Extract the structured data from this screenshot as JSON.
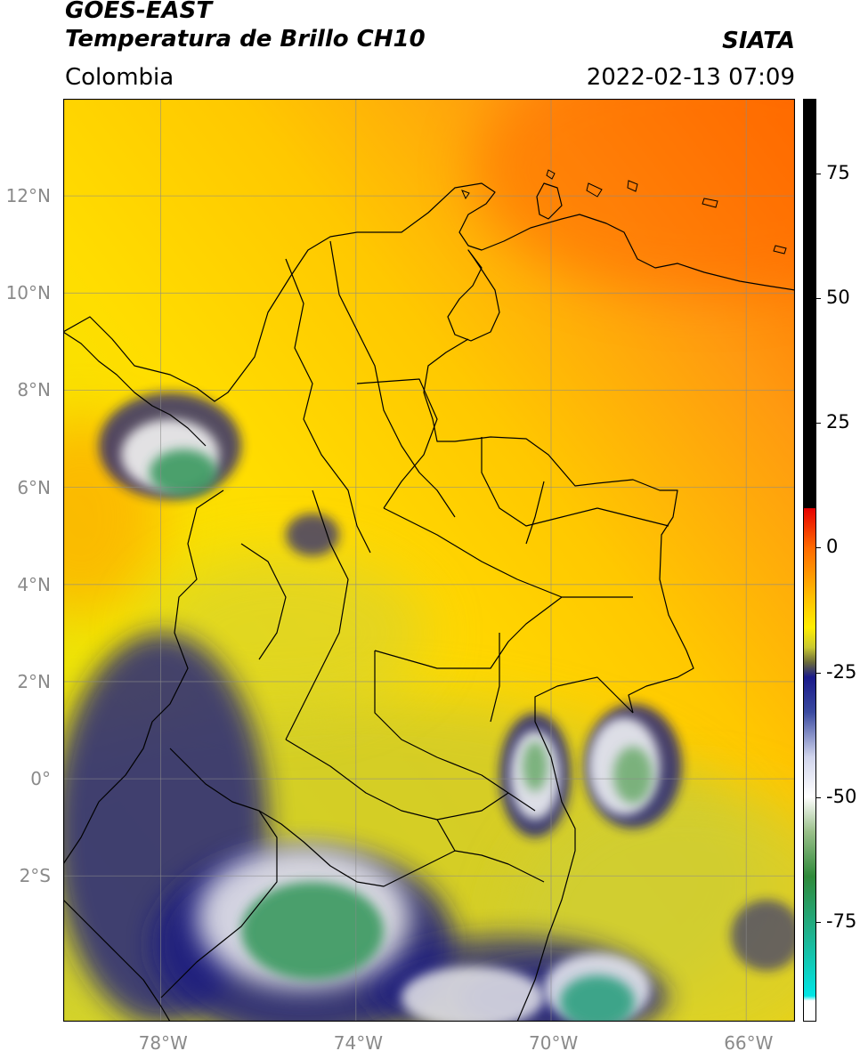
{
  "header": {
    "satellite": "GOES-EAST",
    "product": "Temperatura de Brillo CH10",
    "region": "Colombia",
    "agency": "SIATA",
    "datetime": "2022-02-13 07:09"
  },
  "map": {
    "lon_range": [
      -80,
      -65
    ],
    "lat_range": [
      -5,
      14
    ],
    "x_ticks": [
      {
        "value": -78,
        "label": "78°W"
      },
      {
        "value": -74,
        "label": "74°W"
      },
      {
        "value": -70,
        "label": "70°W"
      },
      {
        "value": -66,
        "label": "66°W"
      }
    ],
    "y_ticks": [
      {
        "value": 12,
        "label": "12°N"
      },
      {
        "value": 10,
        "label": "10°N"
      },
      {
        "value": 8,
        "label": "8°N"
      },
      {
        "value": 6,
        "label": "6°N"
      },
      {
        "value": 4,
        "label": "4°N"
      },
      {
        "value": 2,
        "label": "2°N"
      },
      {
        "value": 0,
        "label": "0°"
      },
      {
        "value": -2,
        "label": "2°S"
      }
    ],
    "colors": {
      "warm_sea": "#ff7a10",
      "mid": "#ffd200",
      "land_cool": "#c8c830",
      "cold_navy": "#1c1c80",
      "cold_white": "#f0f0f0",
      "cold_green": "#3a9a60"
    }
  },
  "colorbar": {
    "range": [
      -95,
      90
    ],
    "ticks": [
      {
        "value": 75,
        "label": "75"
      },
      {
        "value": 50,
        "label": "50"
      },
      {
        "value": 25,
        "label": "25"
      },
      {
        "value": 0,
        "label": "0"
      },
      {
        "value": -25,
        "label": "-25"
      },
      {
        "value": -50,
        "label": "-50"
      },
      {
        "value": -75,
        "label": "-75"
      }
    ],
    "stops": [
      {
        "value": 90,
        "color": "#000000"
      },
      {
        "value": 8,
        "color": "#000000"
      },
      {
        "value": 7.9,
        "color": "#e60000"
      },
      {
        "value": 0,
        "color": "#ff6a00"
      },
      {
        "value": -10,
        "color": "#ffc000"
      },
      {
        "value": -16,
        "color": "#ffee00"
      },
      {
        "value": -20,
        "color": "#c9c930"
      },
      {
        "value": -23,
        "color": "#6b6b3a"
      },
      {
        "value": -26,
        "color": "#1a1a8a"
      },
      {
        "value": -33,
        "color": "#3a4aa0"
      },
      {
        "value": -42,
        "color": "#d0d4ec"
      },
      {
        "value": -50,
        "color": "#ffffff"
      },
      {
        "value": -57,
        "color": "#9ac08a"
      },
      {
        "value": -66,
        "color": "#2f8a3a"
      },
      {
        "value": -77,
        "color": "#20b08a"
      },
      {
        "value": -90,
        "color": "#00e5e5"
      },
      {
        "value": -91,
        "color": "#ffffff"
      },
      {
        "value": -95,
        "color": "#ffffff"
      }
    ]
  }
}
